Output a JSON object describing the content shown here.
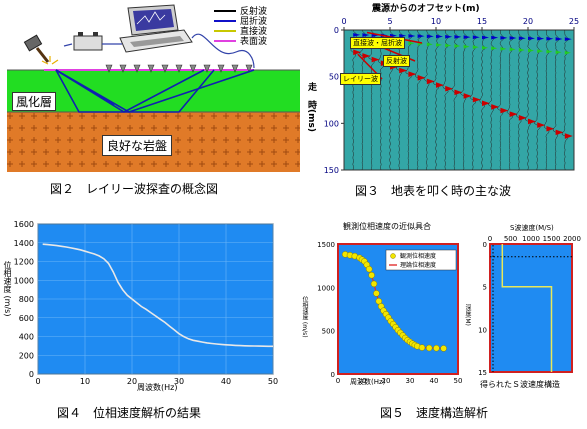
{
  "fig2": {
    "caption": "図２　レイリー波探査の概念図",
    "legend": [
      {
        "label": "反射波",
        "color": "#000000"
      },
      {
        "label": "屈折波",
        "color": "#1010c8"
      },
      {
        "label": "直接波",
        "color": "#c8c800"
      },
      {
        "label": "表面波",
        "color": "#e040e0"
      }
    ],
    "layer_top": "風化層",
    "layer_bottom": "良好な岩盤",
    "colors": {
      "weathered": "#22dd22",
      "bedrock": "#e07a28",
      "ray": "#1020b0"
    }
  },
  "fig3": {
    "caption": "図３　地表を叩く時の主な波",
    "x_title": "震源からのオフセット(m)",
    "x_ticks": [
      "0",
      "5",
      "10",
      "15",
      "20",
      "25"
    ],
    "y_title": "走　時(ms)",
    "y_ticks": [
      "0",
      "50",
      "100",
      "150"
    ],
    "labels": {
      "direct": "直接波・屈折波",
      "reflected": "反射波",
      "rayleigh": "レイリー波"
    },
    "colors": {
      "bg": "#33a6a6",
      "direct": "#0000cc",
      "reflect": "#22cc22",
      "rayleigh": "#cc0000"
    },
    "traces": 24,
    "arrival_ms": {
      "direct": {
        "t0": 5,
        "slope": 0.2
      },
      "reflect": {
        "t0": 10,
        "slope": 0.6
      },
      "rayleigh": {
        "t0": 20,
        "slope": 3.9
      }
    }
  },
  "chart_data": [
    {
      "type": "line",
      "title": "",
      "xlabel": "周波数(Hz)",
      "ylabel": "位相速度 (m/s)",
      "xlim": [
        0,
        50
      ],
      "ylim": [
        0,
        1600
      ],
      "x_ticks": [
        "0",
        "10",
        "20",
        "30",
        "40",
        "50"
      ],
      "y_ticks": [
        "0",
        "200",
        "400",
        "600",
        "800",
        "1000",
        "1200",
        "1400",
        "1600"
      ],
      "series": [
        {
          "x": [
            1,
            2,
            3,
            4,
            5,
            6,
            7,
            8,
            9,
            10,
            11,
            12,
            13,
            14,
            15,
            16,
            17,
            18,
            19,
            20,
            21,
            22,
            23,
            24,
            25,
            26,
            27,
            28,
            29,
            30,
            31,
            32,
            33,
            34,
            35,
            36,
            37,
            38,
            39,
            40,
            41,
            42,
            43,
            44,
            45,
            46,
            47,
            48,
            49,
            50
          ],
          "values": [
            1385,
            1380,
            1375,
            1370,
            1362,
            1355,
            1345,
            1335,
            1325,
            1310,
            1295,
            1280,
            1260,
            1230,
            1180,
            1090,
            980,
            900,
            840,
            800,
            760,
            720,
            690,
            655,
            620,
            585,
            550,
            510,
            470,
            430,
            400,
            375,
            360,
            350,
            340,
            332,
            325,
            320,
            316,
            312,
            308,
            305,
            303,
            301,
            300,
            299,
            298,
            297,
            296,
            295
          ]
        }
      ],
      "colors": {
        "bg": "#1f8bf2",
        "line": "#e8e8e8",
        "grid": "#6bb5f7"
      }
    },
    {
      "type": "scatter",
      "title": "観測位相速度の近似具合",
      "xlabel": "周波数(Hz)",
      "ylabel": "位相速度 (m/s)",
      "xlim": [
        0,
        50
      ],
      "ylim": [
        0,
        1500
      ],
      "x_ticks": [
        "0",
        "10",
        "20",
        "30",
        "40",
        "50"
      ],
      "y_ticks": [
        "0",
        "500",
        "1000",
        "1500"
      ],
      "legend": [
        "観測位相速度",
        "理論位相速度"
      ],
      "series": [
        {
          "name": "観測位相速度",
          "x": [
            3,
            5,
            7,
            9,
            10,
            11,
            12,
            13,
            14,
            15,
            16,
            17,
            18,
            19,
            20,
            21,
            22,
            23,
            24,
            25,
            26,
            27,
            28,
            29,
            30,
            31,
            32,
            33,
            35,
            38,
            41,
            44
          ],
          "values": [
            1380,
            1370,
            1360,
            1340,
            1320,
            1300,
            1260,
            1210,
            1140,
            1040,
            930,
            840,
            780,
            730,
            690,
            650,
            610,
            575,
            540,
            505,
            475,
            445,
            415,
            390,
            370,
            350,
            335,
            320,
            305,
            300,
            298,
            295
          ]
        },
        {
          "name": "理論位相速度",
          "x": [
            3,
            5,
            7,
            9,
            10,
            11,
            12,
            13,
            14,
            15,
            16,
            17,
            18,
            19,
            20,
            21,
            22,
            23,
            24,
            25,
            26,
            27,
            28,
            29,
            30,
            31,
            32,
            33,
            35,
            38,
            41,
            44
          ],
          "values": [
            1380,
            1370,
            1360,
            1340,
            1320,
            1300,
            1260,
            1210,
            1140,
            1040,
            930,
            840,
            780,
            730,
            690,
            650,
            610,
            575,
            540,
            505,
            475,
            445,
            415,
            390,
            370,
            350,
            335,
            320,
            305,
            300,
            298,
            295
          ]
        }
      ],
      "colors": {
        "bg": "#1f8bf2",
        "border": "#d02020",
        "marker": "#f2e600",
        "line": "#e03030"
      }
    },
    {
      "type": "line",
      "title": "S波速度(M/S)",
      "xlabel": "",
      "ylabel": "深度(M)",
      "xlim": [
        0,
        2000
      ],
      "ylim": [
        0,
        15
      ],
      "x_ticks": [
        "0",
        "500",
        "1000",
        "1500",
        "2000"
      ],
      "y_ticks": [
        "0",
        "5",
        "10",
        "15"
      ],
      "series": [
        {
          "x": [
            300,
            300,
            1500,
            1500
          ],
          "values": [
            0,
            5,
            5,
            15
          ]
        }
      ],
      "colors": {
        "bg": "#1f8bf2",
        "border": "#d02020",
        "line": "#e8e85a",
        "dots": "#000000"
      }
    }
  ],
  "fig4": {
    "caption": "図４　位相速度解析の結果"
  },
  "fig5": {
    "caption": "図５　速度構造解析",
    "sub_caption": "得られたＳ波速度構造"
  }
}
